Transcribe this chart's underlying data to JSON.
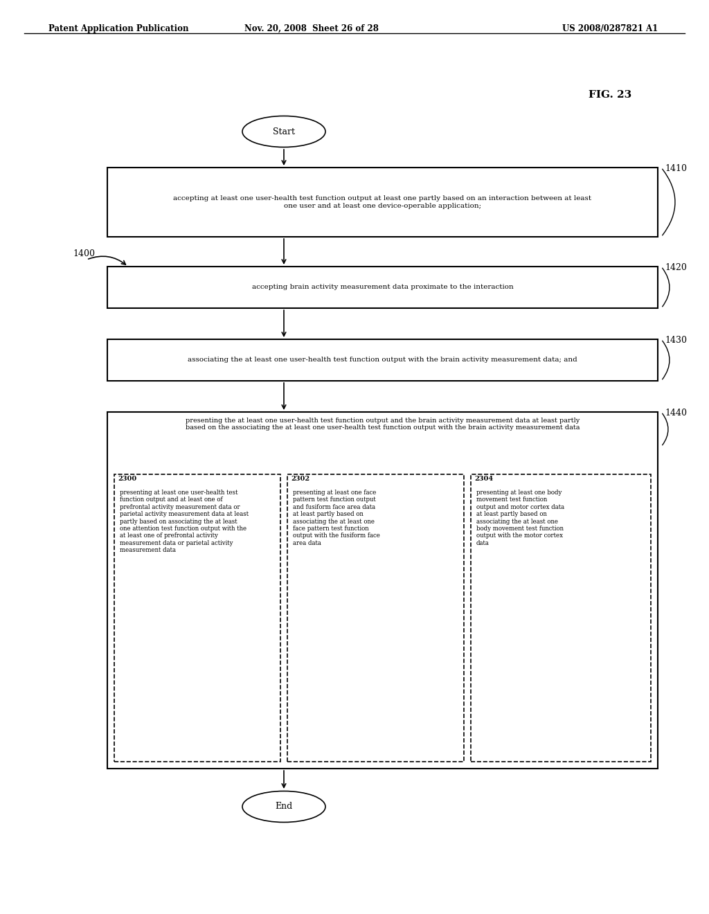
{
  "title": "FIG. 23",
  "header_left": "Patent Application Publication",
  "header_mid": "Nov. 20, 2008  Sheet 26 of 28",
  "header_right": "US 2008/0287821 A1",
  "fig_label": "1400",
  "step_labels": [
    "1410",
    "1420",
    "1430",
    "1440"
  ],
  "start_label": "Start",
  "end_label": "End",
  "box1_text": "accepting at least one user-health test function output at least one partly based on an interaction between at least\none user and at least one device-operable application;",
  "box2_text": "accepting brain activity measurement data proximate to the interaction",
  "box3_text": "associating the at least one user-health test function output with the brain activity measurement data; and",
  "box4_main_text": "presenting the at least one user-health test function output and the brain activity measurement data at least partly\nbased on the associating the at least one user-health test function output with the brain activity measurement data",
  "sub2300_label": "2300",
  "sub2300_text": "presenting at least one user-health test\nfunction output and at least one of\nprefrontal activity measurement data or\nparietal activity measurement data at least\npartly based on associating the at least\none attention test function output with the\nat least one of prefrontal activity\nmeasurement data or parietal activity\nmeasurement data",
  "sub2302_label": "2302",
  "sub2302_text": "presenting at least one face\npattern test function output\nand fusiform face area data\nat least partly based on\nassociating the at least one\nface pattern test function\noutput with the fusiform face\narea data",
  "sub2304_label": "2304",
  "sub2304_text": "presenting at least one body\nmovement test function\noutput and motor cortex data\nat least partly based on\nassociating the at least one\nbody movement test function\noutput with the motor cortex\ndata",
  "bg_color": "#ffffff",
  "text_color": "#000000",
  "box_edge_color": "#000000",
  "dashed_color": "#555555"
}
